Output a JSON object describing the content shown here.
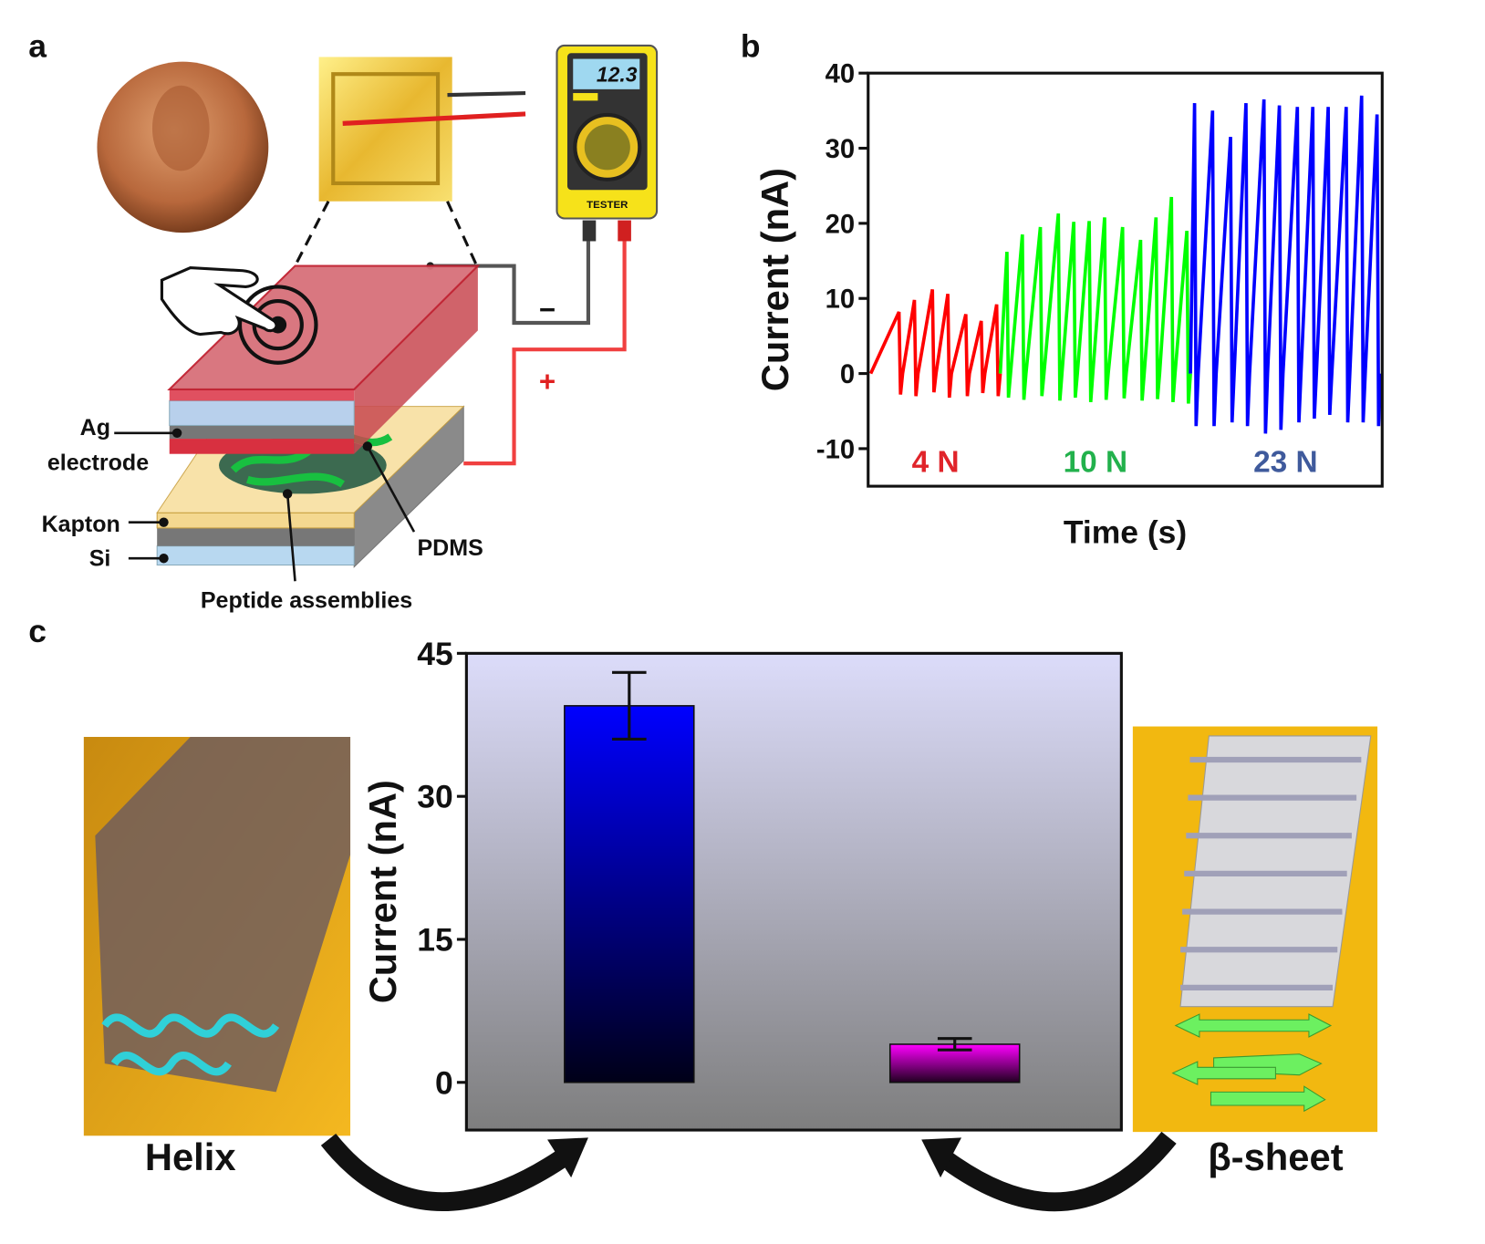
{
  "panel_labels": [
    "a",
    "b",
    "c"
  ],
  "panel_a": {
    "ag_electrode": [
      "Ag",
      "electrode"
    ],
    "kapton": "Kapton",
    "si": "Si",
    "pdms": "PDMS",
    "peptide": "Peptide assemblies",
    "display": "12.3",
    "tester": "TESTER",
    "minus": "−",
    "plus": "+"
  },
  "chart_data": [
    {
      "type": "line",
      "xlabel": "Time (s)",
      "ylabel": "Current (nA)",
      "xlim": [
        0,
        100
      ],
      "ylim": [
        -15,
        40
      ],
      "yticks": [
        -10,
        0,
        10,
        20,
        30,
        40
      ],
      "series": [
        {
          "name": "4 N",
          "color": "#ff0000",
          "label_color": "#e0242a",
          "x": [
            0.5,
            6,
            6.3,
            6.7,
            9,
            9.3,
            9.7,
            12.5,
            12.8,
            13.2,
            15.5,
            15.8,
            16.2,
            19,
            19.3,
            19.7,
            22,
            22.3,
            22.7,
            25,
            25.3,
            25.7
          ],
          "values": [
            0,
            8.2,
            -2.8,
            0,
            9.8,
            -3,
            0,
            11.2,
            -2.5,
            0,
            10.6,
            -3.2,
            0,
            7.9,
            -3,
            0,
            7,
            -2.6,
            0,
            9.2,
            -3,
            0
          ]
        },
        {
          "name": "10 N",
          "color": "#00ff00",
          "label_color": "#22b14c",
          "x": [
            25.7,
            27,
            27.3,
            27.7,
            30,
            30.3,
            30.7,
            33.5,
            33.8,
            34.2,
            37,
            37.3,
            37.7,
            40,
            40.3,
            40.7,
            43,
            43.3,
            43.7,
            46,
            46.3,
            46.7,
            49.5,
            49.8,
            50.2,
            53,
            53.3,
            53.7,
            56,
            56.3,
            56.7,
            59,
            59.3,
            59.7,
            62,
            62.3,
            62.7
          ],
          "values": [
            0,
            16.2,
            -3.2,
            0,
            18.5,
            -3.5,
            0,
            19.5,
            -3,
            0,
            21.3,
            -3.6,
            0,
            20.2,
            -3.2,
            0,
            20.3,
            -3.8,
            0,
            20.8,
            -3.5,
            0,
            19.5,
            -3.3,
            0,
            17.8,
            -3.6,
            0,
            20.8,
            -3.4,
            0,
            23.5,
            -3.8,
            0,
            19,
            -4,
            0
          ]
        },
        {
          "name": "23 N",
          "color": "#0000ff",
          "label_color": "#3f5a9c",
          "x": [
            62.7,
            63.5,
            63.8,
            64.2,
            67,
            67.3,
            67.7,
            70.5,
            70.8,
            71.2,
            73.5,
            73.8,
            74.2,
            77,
            77.3,
            77.7,
            80,
            80.3,
            80.7,
            83.5,
            83.8,
            84.2,
            86.5,
            86.8,
            87.2,
            89.5,
            89.8,
            90.2,
            93,
            93.3,
            93.7,
            96,
            96.3,
            96.7,
            99,
            99.3,
            99.7
          ],
          "values": [
            0,
            36,
            -7,
            0,
            35,
            -7,
            0,
            31.5,
            -6.5,
            0,
            36,
            -7,
            0,
            36.5,
            -8,
            0,
            35.7,
            -7.5,
            0,
            35.5,
            -6.5,
            0,
            35.5,
            -6,
            0,
            35.5,
            -5.5,
            0,
            35.5,
            -6.5,
            0,
            37,
            -6.5,
            0,
            34.5,
            -7,
            0
          ]
        }
      ]
    },
    {
      "type": "bar",
      "ylabel": "Current (nA)",
      "categories": [
        "Helix",
        "β-sheet"
      ],
      "values": [
        39.5,
        4
      ],
      "errors": [
        3.5,
        0.6
      ],
      "colors": [
        "#0000ff",
        "#ff00ff"
      ],
      "ylim": [
        -5,
        45
      ],
      "yticks": [
        0,
        15,
        30,
        45
      ]
    }
  ]
}
